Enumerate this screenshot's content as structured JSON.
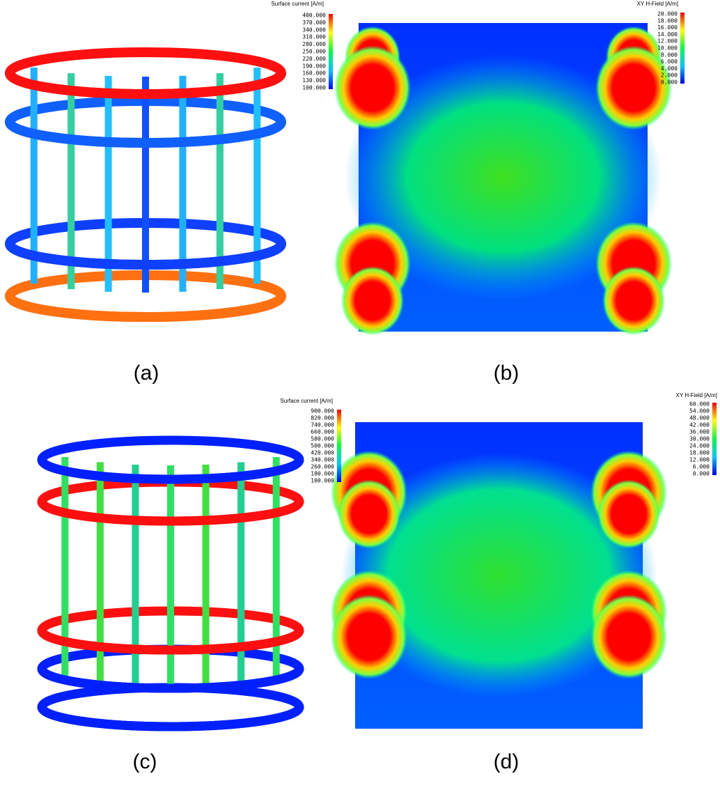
{
  "panels": [
    {
      "caption": "(a)",
      "colorbar": {
        "title": "Surface current [A/m]",
        "ticks": [
          "400.000",
          "370.000",
          "340.000",
          "310.000",
          "280.000",
          "250.000",
          "220.000",
          "190.000",
          "160.000",
          "130.000",
          "100.000"
        ]
      }
    },
    {
      "caption": "(b)",
      "colorbar": {
        "title": "XY  H-Field [A/m]",
        "ticks": [
          "20.000",
          "18.000",
          "16.000",
          "14.000",
          "12.000",
          "10.000",
          "8.000",
          "6.000",
          "4.000",
          "2.000",
          "0.000"
        ]
      }
    },
    {
      "caption": "(c)",
      "colorbar": {
        "title": "Surface current [A/m]",
        "ticks": [
          "900.000",
          "820.000",
          "740.000",
          "660.000",
          "580.000",
          "500.000",
          "420.000",
          "340.000",
          "260.000",
          "180.000",
          "100.000"
        ]
      }
    },
    {
      "caption": "(d)",
      "colorbar": {
        "title": "XY  H-Field [A/m]",
        "ticks": [
          "60.000",
          "54.000",
          "48.000",
          "42.000",
          "36.000",
          "30.000",
          "24.000",
          "18.000",
          "12.000",
          "6.000",
          "0.000"
        ]
      }
    }
  ]
}
